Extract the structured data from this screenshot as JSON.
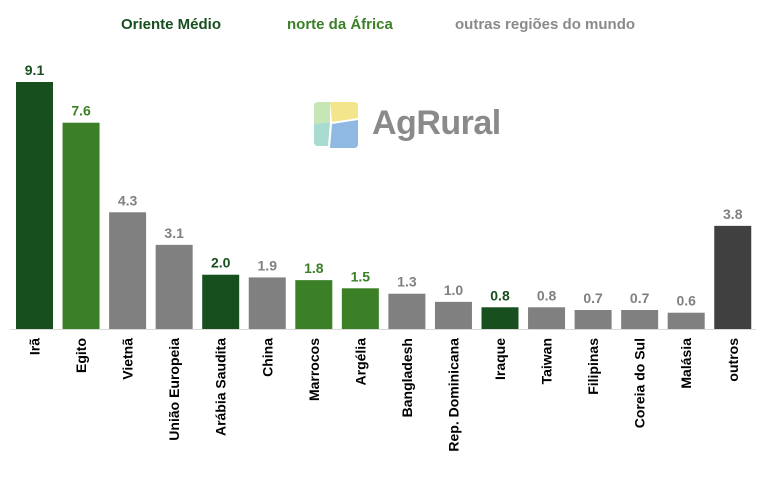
{
  "legend": {
    "middle_east": "Oriente Médio",
    "north_africa": "norte da África",
    "other": "outras regiões do mundo"
  },
  "logo": {
    "text": "AgRural"
  },
  "colors": {
    "middle_east": "#174f1e",
    "north_africa": "#3b7f27",
    "other": "#808080",
    "others_bar": "#404040"
  },
  "chart_data": {
    "type": "bar",
    "categories": [
      "Irã",
      "Egito",
      "Vietnã",
      "União Europeia",
      "Arábia Saudita",
      "China",
      "Marrocos",
      "Argélia",
      "Bangladesh",
      "Rep. Dominicana",
      "Iraque",
      "Taiwan",
      "Filipinas",
      "Coreia do Sul",
      "Malásia",
      "outros"
    ],
    "values": [
      9.1,
      7.6,
      4.3,
      3.1,
      2.0,
      1.9,
      1.8,
      1.5,
      1.3,
      1.0,
      0.8,
      0.8,
      0.7,
      0.7,
      0.6,
      3.8
    ],
    "labels": [
      "9.1",
      "7.6",
      "4.3",
      "3.1",
      "2.0",
      "1.9",
      "1.8",
      "1.5",
      "1.3",
      "1.0",
      "0.8",
      "0.8",
      "0.7",
      "0.7",
      "0.6",
      "3.8"
    ],
    "groups": [
      "middle_east",
      "north_africa",
      "other",
      "other",
      "middle_east",
      "other",
      "north_africa",
      "north_africa",
      "other",
      "other",
      "middle_east",
      "other",
      "other",
      "other",
      "other",
      "others_bar"
    ],
    "ylim": [
      0,
      9.1
    ],
    "title": "",
    "xlabel": "",
    "ylabel": "",
    "legend_position": "top",
    "grid": false
  }
}
